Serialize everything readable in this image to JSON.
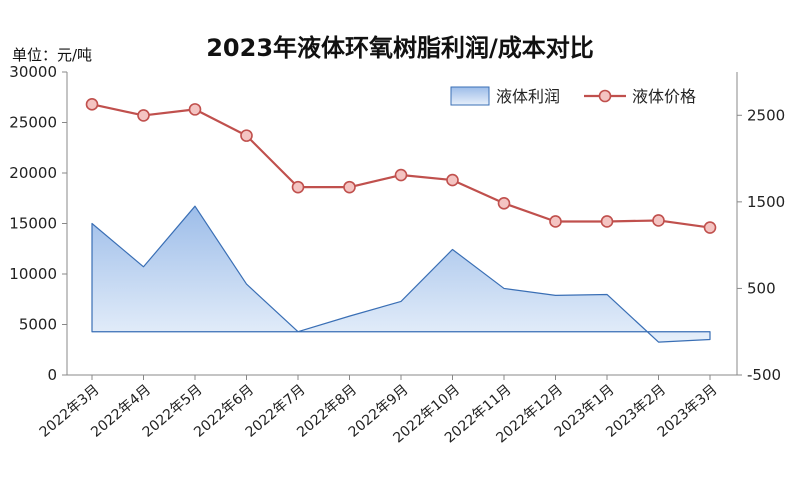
{
  "unit_label": "单位：元/吨",
  "chart_data": {
    "type": "area",
    "title": "2023年液体环氧树脂利润/成本对比",
    "categories": [
      "2022年3月",
      "2022年4月",
      "2022年5月",
      "2022年6月",
      "2022年7月",
      "2022年8月",
      "2022年9月",
      "2022年10月",
      "2022年11月",
      "2022年12月",
      "2023年1月",
      "2023年2月",
      "2023年3月"
    ],
    "left_axis": {
      "ylim": [
        0,
        30000
      ],
      "ticks": [
        0,
        5000,
        10000,
        15000,
        20000,
        25000,
        30000
      ]
    },
    "right_axis": {
      "ylim": [
        -500,
        3000
      ],
      "ticks": [
        -500,
        500,
        1500,
        2500
      ]
    },
    "legend": "top-right",
    "grid": false,
    "series": [
      {
        "name": "液体利润",
        "type": "area",
        "axis": "right",
        "color": "#8fb4e3",
        "values": [
          1250,
          750,
          1450,
          550,
          0,
          180,
          350,
          950,
          500,
          420,
          430,
          -120,
          -90
        ]
      },
      {
        "name": "液体价格",
        "type": "line",
        "axis": "left",
        "color": "#c0504d",
        "values": [
          26800,
          25700,
          26300,
          23700,
          18600,
          18600,
          19800,
          19300,
          17000,
          15200,
          15200,
          15300,
          14600
        ]
      }
    ]
  }
}
